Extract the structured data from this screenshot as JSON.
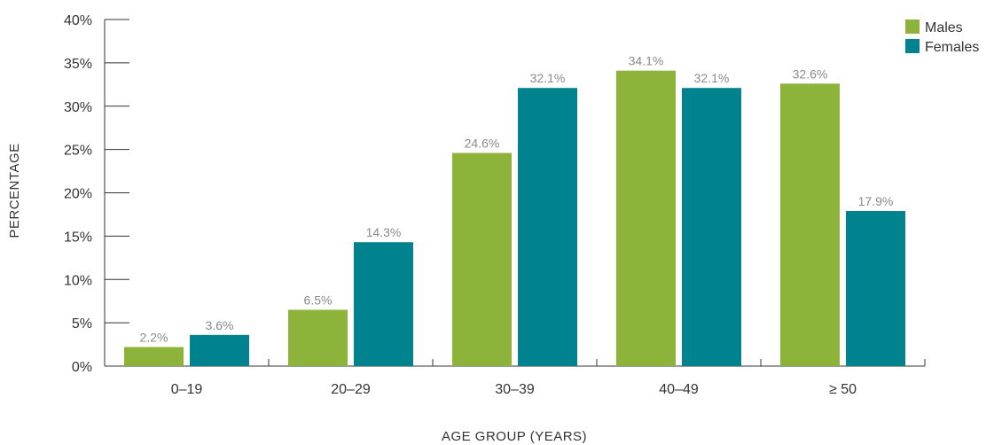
{
  "chart_data": {
    "type": "bar",
    "categories": [
      "0–19",
      "20–29",
      "30–39",
      "40–49",
      "≥ 50"
    ],
    "series": [
      {
        "name": "Males",
        "color": "#8db33a",
        "values": [
          2.2,
          6.5,
          24.6,
          34.1,
          32.6
        ],
        "labels": [
          "2.2%",
          "6.5%",
          "24.6%",
          "34.1%",
          "32.6%"
        ]
      },
      {
        "name": "Females",
        "color": "#00838f",
        "values": [
          3.6,
          14.3,
          32.1,
          32.1,
          17.9
        ],
        "labels": [
          "3.6%",
          "14.3%",
          "32.1%",
          "32.1%",
          "17.9%"
        ]
      }
    ],
    "ylim": [
      0,
      40
    ],
    "yticks": [
      0,
      5,
      10,
      15,
      20,
      25,
      30,
      35,
      40
    ],
    "ytick_labels": [
      "0%",
      "5%",
      "10%",
      "15%",
      "20%",
      "25%",
      "30%",
      "35%",
      "40%"
    ],
    "xlabel": "AGE GROUP (YEARS)",
    "ylabel": "PERCENTAGE",
    "legend_position": "top-right",
    "grid": false
  }
}
